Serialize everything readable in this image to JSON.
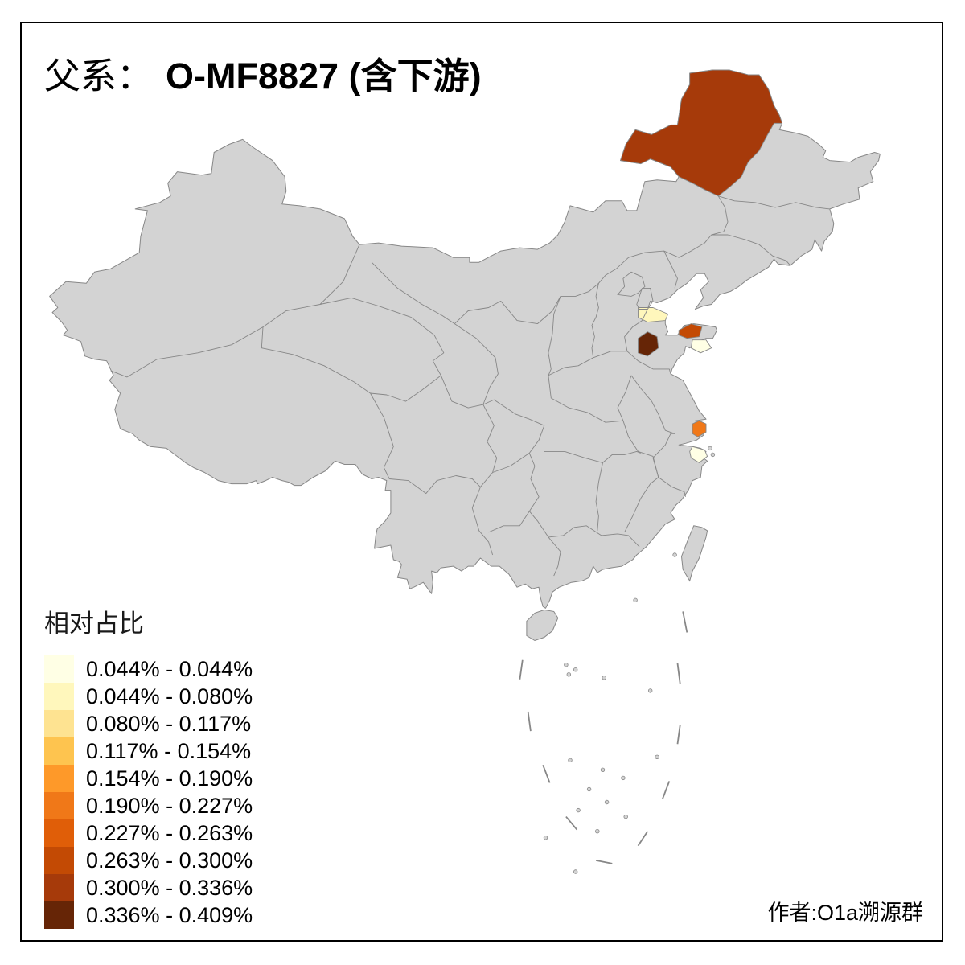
{
  "title": {
    "prefix": "父系：",
    "name": "O-MF8827 (含下游)"
  },
  "legend": {
    "title": "相对占比",
    "bins": [
      {
        "label": "0.044% - 0.044%",
        "color": "#ffffe5"
      },
      {
        "label": "0.044% - 0.080%",
        "color": "#fff7bc"
      },
      {
        "label": "0.080% - 0.117%",
        "color": "#fee391"
      },
      {
        "label": "0.117% - 0.154%",
        "color": "#fec44f"
      },
      {
        "label": "0.154% - 0.190%",
        "color": "#fe9929"
      },
      {
        "label": "0.190% - 0.227%",
        "color": "#f07818"
      },
      {
        "label": "0.227% - 0.263%",
        "color": "#e05e08"
      },
      {
        "label": "0.263% - 0.300%",
        "color": "#c34a04"
      },
      {
        "label": "0.300% - 0.336%",
        "color": "#a63a0a"
      },
      {
        "label": "0.336% - 0.409%",
        "color": "#662506"
      }
    ]
  },
  "attribution": "作者:O1a溯源群",
  "map": {
    "land_color": "#d3d3d3",
    "border_color": "#878787",
    "background": "#ffffff",
    "regions": [
      {
        "id": "northeast-hulunbuir",
        "bin": 8
      },
      {
        "id": "bohai-west",
        "bin": 1
      },
      {
        "id": "shandong-north",
        "bin": 7
      },
      {
        "id": "shandong-center",
        "bin": 9
      },
      {
        "id": "shandong-east",
        "bin": 0
      },
      {
        "id": "yangtze-delta",
        "bin": 5
      },
      {
        "id": "zhejiang-coast",
        "bin": 0
      }
    ]
  }
}
